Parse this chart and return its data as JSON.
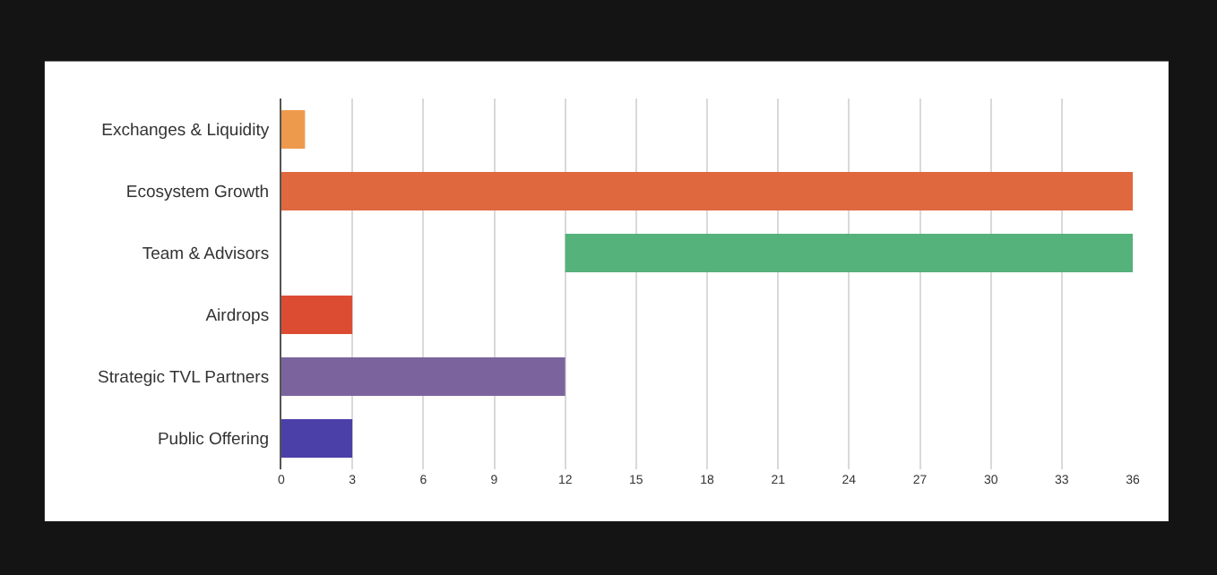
{
  "chart_data": {
    "type": "bar",
    "orientation": "horizontal",
    "categories": [
      "Exchanges & Liquidity",
      "Ecosystem Growth",
      "Team & Advisors",
      "Airdrops",
      "Strategic TVL Partners",
      "Public Offering"
    ],
    "values": [
      1,
      36,
      24,
      3,
      12,
      3
    ],
    "base": [
      0,
      0,
      12,
      0,
      0,
      0
    ],
    "colors": [
      "#ee9a4c",
      "#e0683f",
      "#55b27b",
      "#dc4c33",
      "#7b649e",
      "#4b3fa8"
    ],
    "xlim": [
      0,
      36
    ],
    "xticks": [
      0,
      3,
      6,
      9,
      12,
      15,
      18,
      21,
      24,
      27,
      30,
      33,
      36
    ],
    "grid": "x"
  }
}
